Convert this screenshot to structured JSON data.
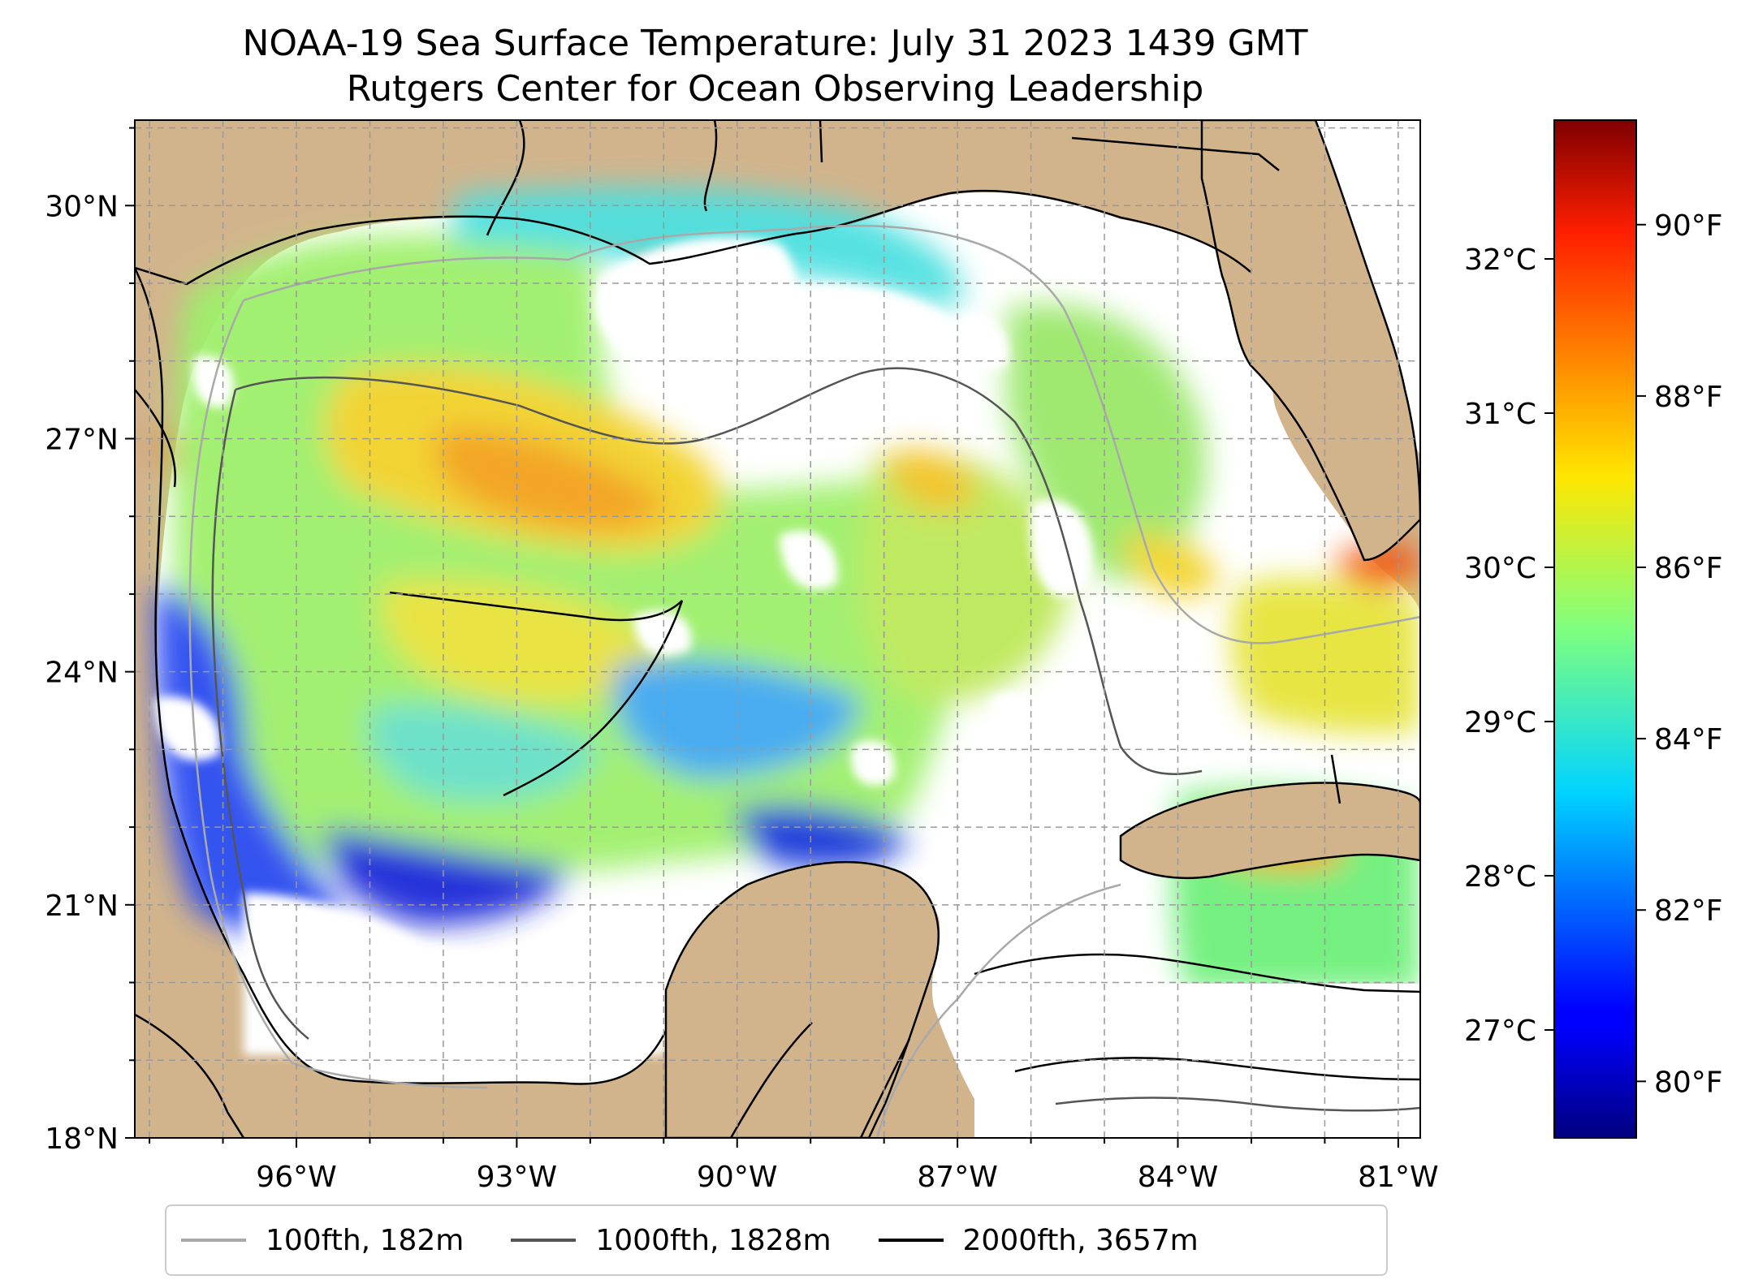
{
  "title": {
    "line1": "NOAA-19 Sea Surface Temperature: July 31 2023 1439 GMT",
    "line2": "Rutgers Center for Ocean Observing Leadership"
  },
  "map": {
    "extent": {
      "lon": [
        -98.2,
        -80.7
      ],
      "lat": [
        18,
        31.1
      ]
    },
    "lat_ticks": [
      {
        "value": 30,
        "label": "30°N"
      },
      {
        "value": 27,
        "label": "27°N"
      },
      {
        "value": 24,
        "label": "24°N"
      },
      {
        "value": 21,
        "label": "21°N"
      },
      {
        "value": 18,
        "label": "18°N"
      }
    ],
    "lon_ticks": [
      {
        "value": -96,
        "label": "96°W"
      },
      {
        "value": -93,
        "label": "93°W"
      },
      {
        "value": -90,
        "label": "90°W"
      },
      {
        "value": -87,
        "label": "87°W"
      },
      {
        "value": -84,
        "label": "84°W"
      },
      {
        "value": -81,
        "label": "81°W"
      }
    ],
    "land_color": "#d2b48c",
    "no_data_color": "#ffffff",
    "gridlines": true
  },
  "colorbar": {
    "colormap": "jet",
    "range_c": [
      26.3,
      32.9
    ],
    "celsius_ticks": [
      {
        "value": 27,
        "label": "27°C"
      },
      {
        "value": 28,
        "label": "28°C"
      },
      {
        "value": 29,
        "label": "29°C"
      },
      {
        "value": 30,
        "label": "30°C"
      },
      {
        "value": 31,
        "label": "31°C"
      },
      {
        "value": 32,
        "label": "32°C"
      }
    ],
    "fahrenheit_ticks": [
      {
        "value": 80,
        "label": "80°F"
      },
      {
        "value": 82,
        "label": "82°F"
      },
      {
        "value": 84,
        "label": "84°F"
      },
      {
        "value": 86,
        "label": "86°F"
      },
      {
        "value": 88,
        "label": "88°F"
      },
      {
        "value": 90,
        "label": "90°F"
      }
    ]
  },
  "legend": {
    "items": [
      {
        "label": "100fth, 182m",
        "color": "#a9a9a9"
      },
      {
        "label": "1000fth, 1828m",
        "color": "#555555"
      },
      {
        "label": "2000fth, 3657m",
        "color": "#000000"
      }
    ]
  }
}
